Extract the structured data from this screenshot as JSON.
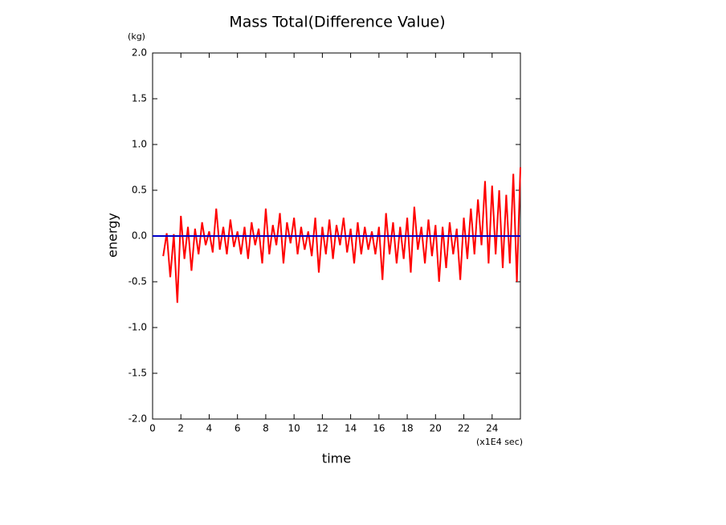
{
  "chart_data": {
    "type": "line",
    "title": "Mass Total(Difference Value)",
    "x_label": "time",
    "y_label": "energy",
    "x_unit": "(x1E4 sec)",
    "y_unit": "(kg)",
    "xlim": [
      0,
      26
    ],
    "ylim": [
      -2,
      2
    ],
    "xticks": [
      0,
      2,
      4,
      6,
      8,
      10,
      12,
      14,
      16,
      18,
      20,
      22,
      24
    ],
    "yticks": [
      {
        "value": -2,
        "label": "-2.0"
      },
      {
        "value": -1.5,
        "label": "-1.5"
      },
      {
        "value": -1,
        "label": "-1.0"
      },
      {
        "value": -0.5,
        "label": "-0.5"
      },
      {
        "value": 0,
        "label": "0.0"
      },
      0.5,
      {
        "value": 1,
        "label": "1.0"
      },
      1.5,
      {
        "value": 2,
        "label": "2.0"
      }
    ],
    "reference_line": {
      "value": 0,
      "color": "#0000cc"
    },
    "x": [
      0.75,
      1.0,
      1.25,
      1.5,
      1.75,
      2.0,
      2.25,
      2.5,
      2.75,
      3.0,
      3.25,
      3.5,
      3.75,
      4.0,
      4.25,
      4.5,
      4.75,
      5.0,
      5.25,
      5.5,
      5.75,
      6.0,
      6.25,
      6.5,
      6.75,
      7.0,
      7.25,
      7.5,
      7.75,
      8.0,
      8.25,
      8.5,
      8.75,
      9.0,
      9.25,
      9.5,
      9.75,
      10.0,
      10.25,
      10.5,
      10.75,
      11.0,
      11.25,
      11.5,
      11.75,
      12.0,
      12.25,
      12.5,
      12.75,
      13.0,
      13.25,
      13.5,
      13.75,
      14.0,
      14.25,
      14.5,
      14.75,
      15.0,
      15.25,
      15.5,
      15.75,
      16.0,
      16.25,
      16.5,
      16.75,
      17.0,
      17.25,
      17.5,
      17.75,
      18.0,
      18.25,
      18.5,
      18.75,
      19.0,
      19.25,
      19.5,
      19.75,
      20.0,
      20.25,
      20.5,
      20.75,
      21.0,
      21.25,
      21.5,
      21.75,
      22.0,
      22.25,
      22.5,
      22.75,
      23.0,
      23.25,
      23.5,
      23.75,
      24.0,
      24.25,
      24.5,
      24.75,
      25.0,
      25.25,
      25.5,
      25.75,
      26.0
    ],
    "series": [
      {
        "color": "#ff0000",
        "values": [
          -0.22,
          0.03,
          -0.45,
          0.02,
          -0.73,
          0.22,
          -0.25,
          0.1,
          -0.38,
          0.08,
          -0.2,
          0.15,
          -0.1,
          0.05,
          -0.18,
          0.3,
          -0.15,
          0.1,
          -0.2,
          0.18,
          -0.12,
          0.05,
          -0.2,
          0.1,
          -0.25,
          0.15,
          -0.1,
          0.08,
          -0.3,
          0.3,
          -0.2,
          0.12,
          -0.1,
          0.25,
          -0.3,
          0.15,
          -0.08,
          0.2,
          -0.2,
          0.1,
          -0.15,
          0.05,
          -0.22,
          0.2,
          -0.4,
          0.1,
          -0.2,
          0.18,
          -0.25,
          0.12,
          -0.1,
          0.2,
          -0.18,
          0.08,
          -0.3,
          0.15,
          -0.2,
          0.1,
          -0.15,
          0.05,
          -0.2,
          0.1,
          -0.48,
          0.25,
          -0.2,
          0.15,
          -0.3,
          0.1,
          -0.25,
          0.2,
          -0.4,
          0.32,
          -0.15,
          0.1,
          -0.3,
          0.18,
          -0.22,
          0.12,
          -0.5,
          0.1,
          -0.35,
          0.15,
          -0.2,
          0.08,
          -0.48,
          0.2,
          -0.25,
          0.3,
          -0.2,
          0.4,
          -0.1,
          0.6,
          -0.3,
          0.55,
          -0.2,
          0.5,
          -0.35,
          0.45,
          -0.3,
          0.68,
          -0.5,
          0.75
        ]
      }
    ]
  }
}
